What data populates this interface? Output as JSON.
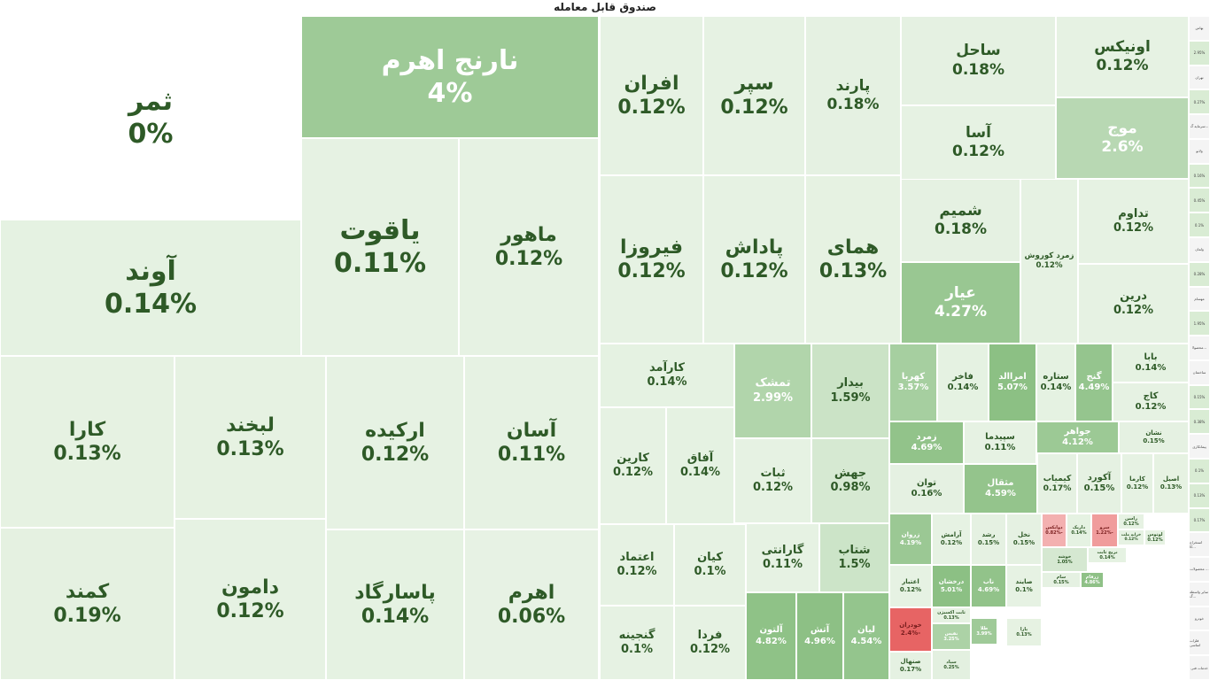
{
  "title": "صندوق قابل معامله",
  "colors": {
    "neutral": "#e9f3e6",
    "positive": "#8cc084",
    "negative": "#e57373",
    "text": "#2e5a27"
  },
  "chart_data": {
    "type": "treemap",
    "title": "صندوق قابل معامله",
    "cells": [
      {
        "label": "ثمر",
        "value": "0%",
        "change": 0
      },
      {
        "label": "نارنج اهرم",
        "value": "4%",
        "change": 4
      },
      {
        "label": "آوند",
        "value": "0.14%",
        "change": 0.14
      },
      {
        "label": "یاقوت",
        "value": "0.11%",
        "change": 0.11
      },
      {
        "label": "ماهور",
        "value": "0.12%",
        "change": 0.12
      },
      {
        "label": "کارا",
        "value": "0.13%",
        "change": 0.13
      },
      {
        "label": "لبخند",
        "value": "0.13%",
        "change": 0.13
      },
      {
        "label": "ارکیده",
        "value": "0.12%",
        "change": 0.12
      },
      {
        "label": "آسان",
        "value": "0.11%",
        "change": 0.11
      },
      {
        "label": "کمند",
        "value": "0.19%",
        "change": 0.19
      },
      {
        "label": "دامون",
        "value": "0.12%",
        "change": 0.12
      },
      {
        "label": "پاسارگاد",
        "value": "0.14%",
        "change": 0.14
      },
      {
        "label": "اهرم",
        "value": "0.06%",
        "change": 0.06
      },
      {
        "label": "افران",
        "value": "0.12%",
        "change": 0.12
      },
      {
        "label": "سپر",
        "value": "0.12%",
        "change": 0.12
      },
      {
        "label": "پارند",
        "value": "0.18%",
        "change": 0.18
      },
      {
        "label": "فیروزا",
        "value": "0.12%",
        "change": 0.12
      },
      {
        "label": "پاداش",
        "value": "0.12%",
        "change": 0.12
      },
      {
        "label": "همای",
        "value": "0.13%",
        "change": 0.13
      },
      {
        "label": "ساحل",
        "value": "0.18%",
        "change": 0.18
      },
      {
        "label": "اونیکس",
        "value": "0.12%",
        "change": 0.12
      },
      {
        "label": "آسا",
        "value": "0.12%",
        "change": 0.12
      },
      {
        "label": "موج",
        "value": "2.6%",
        "change": 2.6
      },
      {
        "label": "شمیم",
        "value": "0.18%",
        "change": 0.18
      },
      {
        "label": "زمرد کوروش",
        "value": "0.12%",
        "change": 0.12
      },
      {
        "label": "تداوم",
        "value": "0.12%",
        "change": 0.12
      },
      {
        "label": "عیار",
        "value": "4.27%",
        "change": 4.27
      },
      {
        "label": "درین",
        "value": "0.12%",
        "change": 0.12
      },
      {
        "label": "کارآمد",
        "value": "0.14%",
        "change": 0.14
      },
      {
        "label": "تمشک",
        "value": "2.99%",
        "change": 2.99
      },
      {
        "label": "بیدار",
        "value": "1.59%",
        "change": 1.59
      },
      {
        "label": "کهربا",
        "value": "3.57%",
        "change": 3.57
      },
      {
        "label": "فاخر",
        "value": "0.14%",
        "change": 0.14
      },
      {
        "label": "امراالد",
        "value": "5.07%",
        "change": 5.07
      },
      {
        "label": "ستاره",
        "value": "0.14%",
        "change": 0.14
      },
      {
        "label": "گنج",
        "value": "4.49%",
        "change": 4.49
      },
      {
        "label": "بابا",
        "value": "0.14%",
        "change": 0.14
      },
      {
        "label": "کاج",
        "value": "0.12%",
        "change": 0.12
      },
      {
        "label": "کارین",
        "value": "0.12%",
        "change": 0.12
      },
      {
        "label": "آفاق",
        "value": "0.14%",
        "change": 0.14
      },
      {
        "label": "ثبات",
        "value": "0.12%",
        "change": 0.12
      },
      {
        "label": "جهش",
        "value": "0.98%",
        "change": 0.98
      },
      {
        "label": "زمرد",
        "value": "4.69%",
        "change": 4.69
      },
      {
        "label": "سپیدما",
        "value": "0.11%",
        "change": 0.11
      },
      {
        "label": "جواهر",
        "value": "4.12%",
        "change": 4.12
      },
      {
        "label": "نشان",
        "value": "0.15%",
        "change": 0.15
      },
      {
        "label": "توان",
        "value": "0.16%",
        "change": 0.16
      },
      {
        "label": "مثقال",
        "value": "4.59%",
        "change": 4.59
      },
      {
        "label": "کیمیاب",
        "value": "0.17%",
        "change": 0.17
      },
      {
        "label": "آکورد",
        "value": "0.15%",
        "change": 0.15
      },
      {
        "label": "کارما",
        "value": "0.12%",
        "change": 0.12
      },
      {
        "label": "اصیل",
        "value": "0.13%",
        "change": 0.13
      },
      {
        "label": "اعتماد",
        "value": "0.12%",
        "change": 0.12
      },
      {
        "label": "کیان",
        "value": "0.1%",
        "change": 0.1
      },
      {
        "label": "گارانتی",
        "value": "0.11%",
        "change": 0.11
      },
      {
        "label": "شتاب",
        "value": "1.5%",
        "change": 1.5
      },
      {
        "label": "زروان",
        "value": "4.19%",
        "change": 4.19
      },
      {
        "label": "آرامش",
        "value": "0.12%",
        "change": 0.12
      },
      {
        "label": "رشد",
        "value": "0.15%",
        "change": 0.15
      },
      {
        "label": "نخل",
        "value": "0.15%",
        "change": 0.15
      },
      {
        "label": "دوایکس",
        "value": "-0.82%",
        "change": -0.82
      },
      {
        "label": "داریک",
        "value": "0.14%",
        "change": 0.14
      },
      {
        "label": "سرو",
        "value": "-1.22%",
        "change": -1.22
      },
      {
        "label": "راسن",
        "value": "0.12%",
        "change": 0.12
      },
      {
        "label": "خزانه ملت",
        "value": "0.12%",
        "change": 0.12
      },
      {
        "label": "لوتوس",
        "value": "0.12%",
        "change": 0.12
      },
      {
        "label": "گنجینه",
        "value": "0.1%",
        "change": 0.1
      },
      {
        "label": "فردا",
        "value": "0.12%",
        "change": 0.12
      },
      {
        "label": "آلتون",
        "value": "4.82%",
        "change": 4.82
      },
      {
        "label": "آتش",
        "value": "4.96%",
        "change": 4.96
      },
      {
        "label": "لیان",
        "value": "4.54%",
        "change": 4.54
      },
      {
        "label": "اعتبار",
        "value": "0.12%",
        "change": 0.12
      },
      {
        "label": "درخشان",
        "value": "5.01%",
        "change": 5.01
      },
      {
        "label": "ناب",
        "value": "4.69%",
        "change": 4.69
      },
      {
        "label": "صایند",
        "value": "0.1%",
        "change": 0.1
      },
      {
        "label": "خوشه",
        "value": "1.05%",
        "change": 1.05
      },
      {
        "label": "نریخ ثابت",
        "value": "0.14%",
        "change": 0.14
      },
      {
        "label": "سام",
        "value": "0.15%",
        "change": 0.15
      },
      {
        "label": "زرفام",
        "value": "4.86%",
        "change": 4.86
      },
      {
        "label": "خودران",
        "value": "-2.4%",
        "change": -2.4
      },
      {
        "label": "ثابت اکسیژن",
        "value": "0.13%",
        "change": 0.13
      },
      {
        "label": "طلا",
        "value": "3.99%",
        "change": 3.99
      },
      {
        "label": "بارا",
        "value": "0.13%",
        "change": 0.13
      },
      {
        "label": "نفیس",
        "value": "3.25%",
        "change": 3.25
      },
      {
        "label": "سپاد",
        "value": "0.25%",
        "change": 0.25
      },
      {
        "label": "صنهال",
        "value": "0.17%",
        "change": 0.17
      }
    ]
  },
  "side_cells": [
    "بهاس",
    "2.95%",
    "تهران",
    "0.27%",
    "سرمایه گ...",
    "ولانو",
    "0.16%",
    "0.45%",
    "0.1%",
    "ولمان",
    "0.28%",
    "مهسام",
    "1.95%",
    "محصولا...",
    "ساختمان",
    "0.15%",
    "0.38%",
    "پیمانکاری",
    "0.1%",
    "0.13%",
    "0.17%",
    "استخراج کا...",
    "محصولات ...",
    "سایر واسطه گ...",
    "خودرو",
    "فلزات اساسی",
    "خدمات فنی"
  ]
}
